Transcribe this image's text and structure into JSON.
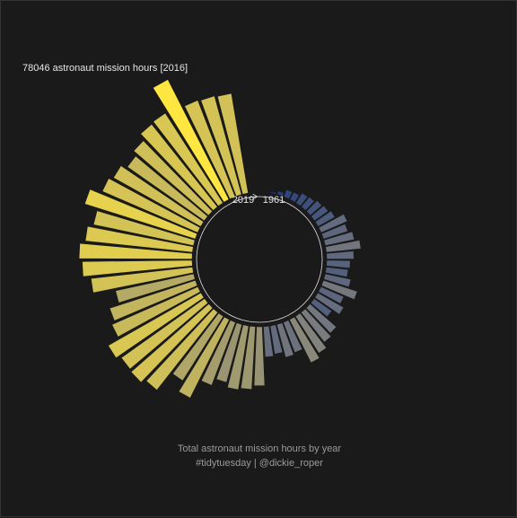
{
  "chart_data": {
    "type": "bar",
    "coordinate_system": "polar",
    "start_label": "1961",
    "end_label": "2019",
    "annotation": "78046 astronaut mission hours [2016]",
    "caption_line1": "Total astronaut mission hours by year",
    "caption_line2": "#tidytuesday | @dickie_roper",
    "colors": {
      "background": "#1a1a1a",
      "low": "#1f3a7a",
      "mid": "#7f7f7f",
      "high": "#ffe640",
      "circle": "#e6e6e6"
    },
    "ymax": 78046,
    "x": [
      1961,
      1962,
      1963,
      1964,
      1965,
      1966,
      1967,
      1968,
      1969,
      1970,
      1971,
      1972,
      1973,
      1974,
      1975,
      1976,
      1977,
      1978,
      1979,
      1980,
      1981,
      1982,
      1983,
      1984,
      1985,
      1986,
      1987,
      1988,
      1989,
      1990,
      1991,
      1992,
      1993,
      1994,
      1995,
      1996,
      1997,
      1998,
      1999,
      2000,
      2001,
      2002,
      2003,
      2004,
      2005,
      2006,
      2007,
      2008,
      2009,
      2010,
      2011,
      2012,
      2013,
      2014,
      2015,
      2016,
      2017,
      2018,
      2019
    ],
    "values": [
      10,
      60,
      250,
      300,
      600,
      700,
      1000,
      1200,
      1600,
      3500,
      2800,
      3800,
      5200,
      3200,
      2400,
      2100,
      3000,
      5500,
      2700,
      3800,
      2000,
      5300,
      6200,
      8200,
      10000,
      4500,
      5000,
      3500,
      4000,
      15000,
      17000,
      18000,
      15500,
      19500,
      33000,
      25000,
      42000,
      46000,
      45000,
      49000,
      38000,
      35000,
      27500,
      45000,
      52000,
      55000,
      50000,
      45000,
      58000,
      46500,
      43000,
      38000,
      42000,
      48000,
      49000,
      78046,
      46000,
      45000,
      44000
    ]
  }
}
